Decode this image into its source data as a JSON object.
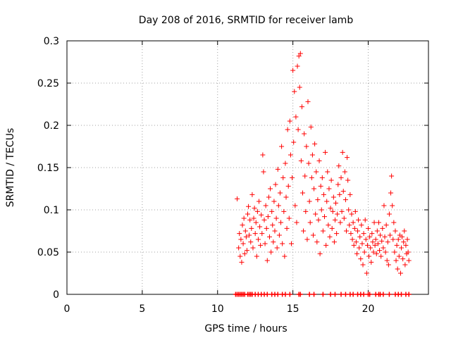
{
  "chart_data": {
    "type": "scatter",
    "title": "Day 208 of 2016, SRMTID for receiver lamb",
    "xlabel": "GPS time / hours",
    "ylabel": "SRMTID / TECUs",
    "xlim": [
      0,
      24
    ],
    "ylim": [
      0,
      0.3
    ],
    "x_ticks": [
      0,
      5,
      10,
      15,
      20
    ],
    "x_tick_labels": [
      "0",
      "5",
      "10",
      "15",
      "20"
    ],
    "y_ticks": [
      0,
      0.05,
      0.1,
      0.15,
      0.2,
      0.25,
      0.3
    ],
    "y_tick_labels": [
      "0",
      "0.05",
      "0.1",
      "0.15",
      "0.2",
      "0.25",
      "0.3"
    ],
    "grid": true,
    "marker": "+",
    "series": [
      {
        "name": "SRMTID",
        "color": "#ff0000",
        "points": [
          [
            11.3,
            0.113
          ],
          [
            11.4,
            0.055
          ],
          [
            11.45,
            0.072
          ],
          [
            11.5,
            0.045
          ],
          [
            11.55,
            0.065
          ],
          [
            11.6,
            0.038
          ],
          [
            11.65,
            0.082
          ],
          [
            11.7,
            0.06
          ],
          [
            11.75,
            0.09
          ],
          [
            11.8,
            0.048
          ],
          [
            11.85,
            0.075
          ],
          [
            11.9,
            0.068
          ],
          [
            11.95,
            0.052
          ],
          [
            12.0,
            0.095
          ],
          [
            12.05,
            0.104
          ],
          [
            12.1,
            0.07
          ],
          [
            12.15,
            0.088
          ],
          [
            12.2,
            0.062
          ],
          [
            12.25,
            0.078
          ],
          [
            12.3,
            0.118
          ],
          [
            12.35,
            0.055
          ],
          [
            12.4,
            0.09
          ],
          [
            12.45,
            0.102
          ],
          [
            12.5,
            0.072
          ],
          [
            12.55,
            0.085
          ],
          [
            12.6,
            0.045
          ],
          [
            12.65,
            0.098
          ],
          [
            12.7,
            0.065
          ],
          [
            12.75,
            0.11
          ],
          [
            12.8,
            0.08
          ],
          [
            12.85,
            0.058
          ],
          [
            12.9,
            0.094
          ],
          [
            12.95,
            0.072
          ],
          [
            13.0,
            0.165
          ],
          [
            13.05,
            0.145
          ],
          [
            13.1,
            0.088
          ],
          [
            13.15,
            0.06
          ],
          [
            13.2,
            0.105
          ],
          [
            13.25,
            0.078
          ],
          [
            13.3,
            0.04
          ],
          [
            13.35,
            0.092
          ],
          [
            13.4,
            0.115
          ],
          [
            13.45,
            0.068
          ],
          [
            13.5,
            0.125
          ],
          [
            13.55,
            0.05
          ],
          [
            13.6,
            0.098
          ],
          [
            13.65,
            0.082
          ],
          [
            13.7,
            0.062
          ],
          [
            13.75,
            0.11
          ],
          [
            13.8,
            0.075
          ],
          [
            13.85,
            0.13
          ],
          [
            13.9,
            0.09
          ],
          [
            13.95,
            0.055
          ],
          [
            14.0,
            0.148
          ],
          [
            14.05,
            0.105
          ],
          [
            14.1,
            0.07
          ],
          [
            14.15,
            0.12
          ],
          [
            14.2,
            0.085
          ],
          [
            14.25,
            0.175
          ],
          [
            14.3,
            0.06
          ],
          [
            14.35,
            0.138
          ],
          [
            14.4,
            0.098
          ],
          [
            14.45,
            0.045
          ],
          [
            14.5,
            0.155
          ],
          [
            14.55,
            0.115
          ],
          [
            14.6,
            0.078
          ],
          [
            14.65,
            0.195
          ],
          [
            14.7,
            0.128
          ],
          [
            14.75,
            0.09
          ],
          [
            14.8,
            0.205
          ],
          [
            14.85,
            0.165
          ],
          [
            14.9,
            0.06
          ],
          [
            14.95,
            0.138
          ],
          [
            15.0,
            0.265
          ],
          [
            15.05,
            0.18
          ],
          [
            15.1,
            0.24
          ],
          [
            15.15,
            0.105
          ],
          [
            15.2,
            0.21
          ],
          [
            15.25,
            0.085
          ],
          [
            15.3,
            0.27
          ],
          [
            15.35,
            0.195
          ],
          [
            15.4,
            0.282
          ],
          [
            15.45,
            0.245
          ],
          [
            15.5,
            0.285
          ],
          [
            15.55,
            0.158
          ],
          [
            15.6,
            0.222
          ],
          [
            15.65,
            0.12
          ],
          [
            15.7,
            0.075
          ],
          [
            15.75,
            0.19
          ],
          [
            15.8,
            0.14
          ],
          [
            15.85,
            0.098
          ],
          [
            15.9,
            0.175
          ],
          [
            15.95,
            0.065
          ],
          [
            16.0,
            0.228
          ],
          [
            16.05,
            0.155
          ],
          [
            16.1,
            0.11
          ],
          [
            16.15,
            0.085
          ],
          [
            16.2,
            0.198
          ],
          [
            16.25,
            0.138
          ],
          [
            16.3,
            0.165
          ],
          [
            16.35,
            0.07
          ],
          [
            16.4,
            0.125
          ],
          [
            16.45,
            0.178
          ],
          [
            16.5,
            0.095
          ],
          [
            16.55,
            0.145
          ],
          [
            16.6,
            0.062
          ],
          [
            16.65,
            0.112
          ],
          [
            16.7,
            0.088
          ],
          [
            16.75,
            0.158
          ],
          [
            16.8,
            0.048
          ],
          [
            16.85,
            0.128
          ],
          [
            16.9,
            0.1
          ],
          [
            16.95,
            0.138
          ],
          [
            17.0,
            0.075
          ],
          [
            17.05,
            0.118
          ],
          [
            17.1,
            0.092
          ],
          [
            17.15,
            0.168
          ],
          [
            17.2,
            0.058
          ],
          [
            17.25,
            0.11
          ],
          [
            17.3,
            0.145
          ],
          [
            17.35,
            0.082
          ],
          [
            17.4,
            0.125
          ],
          [
            17.45,
            0.068
          ],
          [
            17.5,
            0.102
          ],
          [
            17.55,
            0.135
          ],
          [
            17.6,
            0.078
          ],
          [
            17.65,
            0.098
          ],
          [
            17.7,
            0.115
          ],
          [
            17.75,
            0.062
          ],
          [
            17.8,
            0.088
          ],
          [
            17.85,
            0.108
          ],
          [
            17.9,
            0.072
          ],
          [
            17.95,
            0.095
          ],
          [
            18.0,
            0.13
          ],
          [
            18.05,
            0.152
          ],
          [
            18.1,
            0.118
          ],
          [
            18.15,
            0.085
          ],
          [
            18.2,
            0.138
          ],
          [
            18.25,
            0.098
          ],
          [
            18.3,
            0.168
          ],
          [
            18.35,
            0.122
          ],
          [
            18.4,
            0.09
          ],
          [
            18.45,
            0.145
          ],
          [
            18.5,
            0.112
          ],
          [
            18.55,
            0.075
          ],
          [
            18.6,
            0.162
          ],
          [
            18.65,
            0.135
          ],
          [
            18.7,
            0.1
          ],
          [
            18.75,
            0.082
          ],
          [
            18.8,
            0.118
          ],
          [
            18.85,
            0.072
          ],
          [
            18.9,
            0.095
          ],
          [
            18.95,
            0.065
          ],
          [
            19.0,
            0.085
          ],
          [
            19.05,
            0.058
          ],
          [
            19.1,
            0.078
          ],
          [
            19.15,
            0.098
          ],
          [
            19.2,
            0.062
          ],
          [
            19.25,
            0.048
          ],
          [
            19.3,
            0.075
          ],
          [
            19.35,
            0.088
          ],
          [
            19.4,
            0.055
          ],
          [
            19.45,
            0.068
          ],
          [
            19.5,
            0.042
          ],
          [
            19.55,
            0.082
          ],
          [
            19.6,
            0.06
          ],
          [
            19.65,
            0.035
          ],
          [
            19.7,
            0.072
          ],
          [
            19.75,
            0.05
          ],
          [
            19.8,
            0.088
          ],
          [
            19.85,
            0.065
          ],
          [
            19.9,
            0.025
          ],
          [
            19.95,
            0.058
          ],
          [
            20.0,
            0.078
          ],
          [
            20.05,
            0.045
          ],
          [
            20.1,
            0.068
          ],
          [
            20.15,
            0.055
          ],
          [
            20.2,
            0.038
          ],
          [
            20.25,
            0.072
          ],
          [
            20.3,
            0.062
          ],
          [
            20.35,
            0.05
          ],
          [
            20.4,
            0.085
          ],
          [
            20.45,
            0.058
          ],
          [
            20.5,
            0.065
          ],
          [
            20.55,
            0.048
          ],
          [
            20.6,
            0.075
          ],
          [
            20.65,
            0.06
          ],
          [
            20.7,
            0.085
          ],
          [
            20.75,
            0.052
          ],
          [
            20.8,
            0.07
          ],
          [
            20.85,
            0.045
          ],
          [
            20.9,
            0.063
          ],
          [
            20.95,
            0.078
          ],
          [
            21.0,
            0.055
          ],
          [
            21.05,
            0.105
          ],
          [
            21.1,
            0.068
          ],
          [
            21.15,
            0.05
          ],
          [
            21.2,
            0.082
          ],
          [
            21.25,
            0.04
          ],
          [
            21.3,
            0.062
          ],
          [
            21.35,
            0.035
          ],
          [
            21.4,
            0.095
          ],
          [
            21.45,
            0.07
          ],
          [
            21.5,
            0.12
          ],
          [
            21.55,
            0.14
          ],
          [
            21.6,
            0.105
          ],
          [
            21.65,
            0.065
          ],
          [
            21.7,
            0.085
          ],
          [
            21.75,
            0.05
          ],
          [
            21.8,
            0.075
          ],
          [
            21.85,
            0.04
          ],
          [
            21.9,
            0.058
          ],
          [
            21.95,
            0.03
          ],
          [
            22.0,
            0.065
          ],
          [
            22.05,
            0.045
          ],
          [
            22.1,
            0.07
          ],
          [
            22.15,
            0.025
          ],
          [
            22.2,
            0.055
          ],
          [
            22.25,
            0.068
          ],
          [
            22.3,
            0.042
          ],
          [
            22.35,
            0.062
          ],
          [
            22.4,
            0.075
          ],
          [
            22.45,
            0.035
          ],
          [
            22.5,
            0.058
          ],
          [
            22.55,
            0.048
          ],
          [
            22.6,
            0.065
          ],
          [
            22.65,
            0.05
          ],
          [
            22.7,
            0.04
          ]
        ]
      }
    ],
    "zero_markers": [
      11.2,
      11.3,
      11.4,
      11.5,
      11.6,
      11.7,
      11.8,
      12.0,
      12.1,
      12.2,
      12.3,
      12.5,
      12.7,
      12.9,
      13.1,
      13.3,
      13.6,
      13.8,
      14.0,
      14.3,
      14.5,
      14.8,
      15.4,
      15.5,
      16.1,
      16.4,
      17.0,
      17.5,
      17.8,
      18.2,
      18.5,
      18.8,
      19.0,
      19.3,
      19.5,
      19.7,
      20.0,
      20.1,
      20.5,
      20.7,
      20.8,
      21.0,
      21.4,
      21.8,
      22.0,
      22.2,
      22.5,
      22.7
    ]
  }
}
